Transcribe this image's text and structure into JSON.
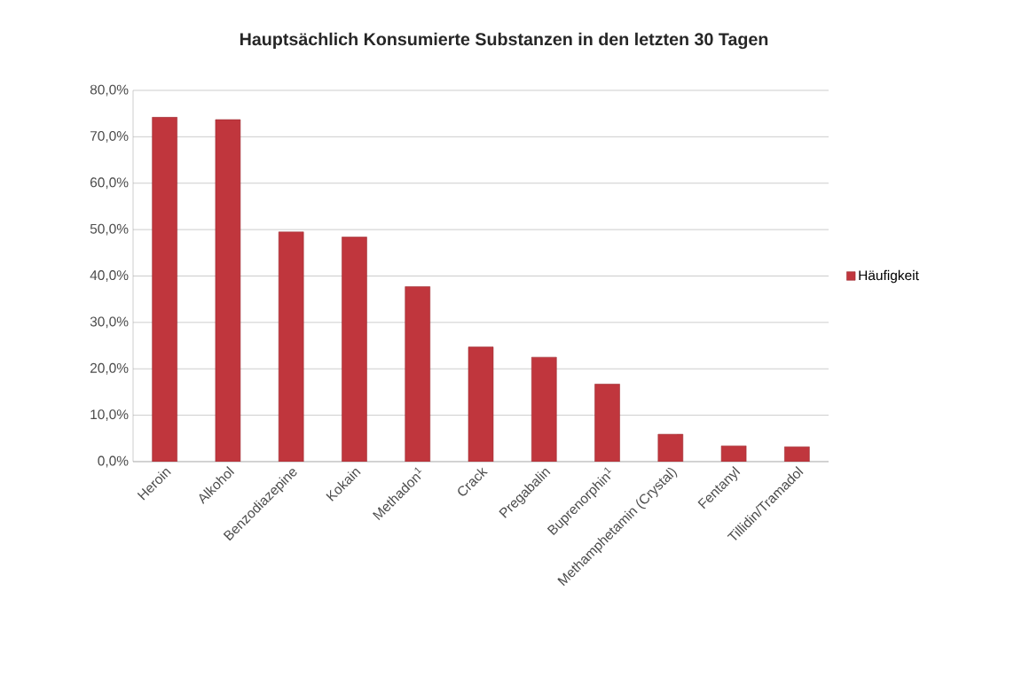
{
  "chart_data": {
    "type": "bar",
    "title": "Hauptsächlich Konsumierte Substanzen in den letzten 30 Tagen",
    "categories": [
      "Heroin",
      "Alkohol",
      "Benzodiazepine",
      "Kokain",
      "Methadon$^{1}$",
      "Crack",
      "Pregabalin",
      "Buprenorphin$^{1}$",
      "Methamphetamin (Crystal)",
      "Fentanyl",
      "Tillidin/Tramadol"
    ],
    "series": [
      {
        "name": "Häufigkeit",
        "color": "#c0363d",
        "values": [
          74.2,
          73.7,
          49.5,
          48.4,
          37.7,
          24.7,
          22.5,
          16.7,
          5.9,
          3.4,
          3.2
        ]
      }
    ],
    "ylim": [
      0,
      80
    ],
    "yticks": [
      {
        "value": 0,
        "label": "0,0%"
      },
      {
        "value": 10,
        "label": "10,0%"
      },
      {
        "value": 20,
        "label": "20,0%"
      },
      {
        "value": 30,
        "label": "30,0%"
      },
      {
        "value": 40,
        "label": "40,0%"
      },
      {
        "value": 50,
        "label": "50,0%"
      },
      {
        "value": 60,
        "label": "60,0%"
      },
      {
        "value": 70,
        "label": "70,0%"
      },
      {
        "value": 80,
        "label": "80,0%"
      }
    ],
    "grid": "y",
    "legend": "right"
  }
}
